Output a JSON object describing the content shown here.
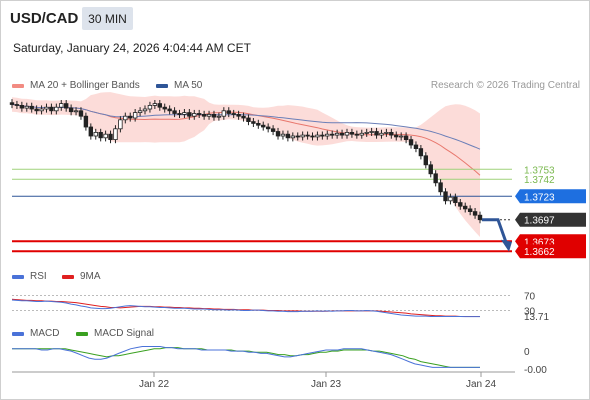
{
  "header": {
    "symbol": "USD/CAD",
    "timeframe": "30 MIN",
    "datetime": "Saturday, January 24, 2026 4:04:44 AM CET",
    "credit": "Research © 2026 Trading Central"
  },
  "legends": {
    "main": [
      {
        "label": "MA 20 + Bollinger Bands",
        "color": "#f28b82"
      },
      {
        "label": "MA 50",
        "color": "#2f5597"
      }
    ],
    "rsi": [
      {
        "label": "RSI",
        "color": "#4a72d8"
      },
      {
        "label": "9MA",
        "color": "#e02020"
      }
    ],
    "macd": [
      {
        "label": "MACD",
        "color": "#4a72d8"
      },
      {
        "label": "MACD Signal",
        "color": "#3aa020"
      }
    ]
  },
  "colors": {
    "resistance": "#9fd27a",
    "pivot": "#2f5597",
    "support": "#e00000",
    "last_price_bg": "#333333",
    "pivot_tag_bg": "#1e6fe0",
    "support_tag_bg": "#e00000",
    "bollinger_fill": "#fbd3d0",
    "arrow": "#2f5597"
  },
  "chart_data": [
    {
      "type": "candlestick",
      "title": "USD/CAD 30 MIN",
      "ylim": [
        1.365,
        1.383
      ],
      "x_ticks": [
        "Jan 22",
        "Jan 23",
        "Jan 24"
      ],
      "closes": [
        1.3825,
        1.3824,
        1.3821,
        1.3823,
        1.382,
        1.3818,
        1.382,
        1.3822,
        1.3818,
        1.3822,
        1.3826,
        1.3821,
        1.3817,
        1.3818,
        1.3812,
        1.38,
        1.379,
        1.3794,
        1.3788,
        1.3792,
        1.3786,
        1.3798,
        1.3808,
        1.3812,
        1.381,
        1.3816,
        1.3818,
        1.382,
        1.3824,
        1.3826,
        1.3822,
        1.382,
        1.3818,
        1.3815,
        1.3814,
        1.3816,
        1.3812,
        1.3815,
        1.3814,
        1.3812,
        1.3814,
        1.3811,
        1.3812,
        1.3818,
        1.3815,
        1.3814,
        1.3812,
        1.381,
        1.3806,
        1.3804,
        1.3802,
        1.38,
        1.3798,
        1.3795,
        1.379,
        1.3792,
        1.3788,
        1.379,
        1.3789,
        1.3791,
        1.379,
        1.3789,
        1.3791,
        1.379,
        1.3792,
        1.3791,
        1.3793,
        1.3791,
        1.3794,
        1.3792,
        1.3791,
        1.3793,
        1.3794,
        1.3795,
        1.3791,
        1.3793,
        1.3794,
        1.3791,
        1.3789,
        1.379,
        1.3786,
        1.378,
        1.3776,
        1.3768,
        1.3758,
        1.3748,
        1.3738,
        1.3728,
        1.3718,
        1.3722,
        1.3716,
        1.3712,
        1.3709,
        1.3706,
        1.3702,
        1.3697
      ],
      "last_price": 1.3697
    },
    {
      "type": "lines",
      "name": "levels",
      "levels": [
        {
          "label": "1.3753",
          "value": 1.3753,
          "kind": "resistance"
        },
        {
          "label": "1.3742",
          "value": 1.3742,
          "kind": "resistance"
        },
        {
          "label": "1.3723",
          "value": 1.3723,
          "kind": "pivot"
        },
        {
          "label": "1.3697",
          "value": 1.3697,
          "kind": "last"
        },
        {
          "label": "1.3673",
          "value": 1.3673,
          "kind": "support"
        },
        {
          "label": "1.3662",
          "value": 1.3662,
          "kind": "support"
        }
      ]
    },
    {
      "type": "line",
      "name": "RSI panel",
      "ylim": [
        10,
        90
      ],
      "y_ticks": [
        "70",
        "30"
      ],
      "last_label": "13.71",
      "rsi": [
        58,
        57,
        56,
        56,
        55,
        54,
        54,
        55,
        54,
        53,
        52,
        50,
        47,
        45,
        42,
        40,
        37,
        36,
        35,
        35,
        36,
        38,
        40,
        42,
        43,
        42,
        41,
        40,
        40,
        39,
        38,
        38,
        37,
        36,
        36,
        36,
        35,
        34,
        34,
        34,
        33,
        32,
        32,
        32,
        31,
        32,
        31,
        30,
        30,
        31,
        31,
        30,
        29,
        29,
        28,
        28,
        27,
        27,
        27,
        28,
        28,
        28,
        29,
        28,
        29,
        28,
        29,
        29,
        30,
        30,
        29,
        29,
        30,
        29,
        28,
        26,
        24,
        22,
        20,
        18,
        17,
        16,
        15,
        15,
        15,
        14,
        14,
        14,
        14,
        14,
        14,
        14,
        13.7,
        13.7,
        13.7,
        13.71
      ],
      "ma9": [
        60,
        59,
        58,
        57,
        57,
        56,
        56,
        55,
        55,
        54,
        54,
        53,
        52,
        51,
        49,
        47,
        45,
        43,
        41,
        40,
        38,
        38,
        37,
        38,
        39,
        40,
        41,
        41,
        41,
        40,
        40,
        39,
        39,
        38,
        38,
        37,
        37,
        36,
        36,
        35,
        35,
        34,
        34,
        33,
        33,
        33,
        32,
        32,
        32,
        31,
        31,
        31,
        30,
        30,
        30,
        29,
        29,
        29,
        29,
        28,
        28,
        28,
        28,
        28,
        28,
        29,
        29,
        29,
        29,
        29,
        29,
        29,
        29,
        29,
        29,
        28,
        27,
        26,
        25,
        24,
        23,
        21,
        20,
        19,
        18,
        17,
        16,
        16,
        15,
        15,
        15,
        14,
        14,
        14,
        14,
        14
      ]
    },
    {
      "type": "line",
      "name": "MACD panel",
      "ylim": [
        -0.002,
        0.0005
      ],
      "y_ticks": [
        "0",
        "-0.00"
      ],
      "macd": [
        0.0,
        0.0,
        0.0,
        0.0,
        0.0,
        -0.0001,
        -0.0001,
        0.0,
        0.0,
        -0.0001,
        -0.0002,
        -0.0004,
        -0.0006,
        -0.0008,
        -0.0009,
        -0.0009,
        -0.0008,
        -0.0006,
        -0.0004,
        -0.0002,
        0.0,
        0.0001,
        0.0002,
        0.0002,
        0.0002,
        0.0002,
        0.0001,
        0.0001,
        0.0,
        0.0,
        0.0,
        0.0,
        -0.0001,
        -0.0001,
        -0.0001,
        -0.0001,
        -0.0001,
        -0.0002,
        -0.0002,
        -0.0002,
        -0.0003,
        -0.0003,
        -0.0004,
        -0.0004,
        -0.0005,
        -0.0006,
        -0.0007,
        -0.0007,
        -0.0006,
        -0.0005,
        -0.0004,
        -0.0003,
        -0.0002,
        -0.0001,
        -0.0001,
        -0.0001,
        0.0,
        0.0,
        0.0,
        0.0,
        -0.0001,
        -0.0002,
        -0.0003,
        -0.0004,
        -0.0005,
        -0.0007,
        -0.0009,
        -0.0011,
        -0.0013,
        -0.0014,
        -0.0015,
        -0.0016,
        -0.0016,
        -0.0016,
        -0.0016,
        -0.0016,
        -0.0016,
        -0.0016,
        -0.0016,
        -0.0016
      ],
      "signal": [
        0.0,
        0.0,
        0.0,
        0.0,
        0.0,
        0.0,
        0.0,
        0.0,
        0.0,
        0.0,
        -0.0001,
        -0.0002,
        -0.0003,
        -0.0004,
        -0.0005,
        -0.0006,
        -0.0007,
        -0.0006,
        -0.0006,
        -0.0005,
        -0.0004,
        -0.0003,
        -0.0002,
        -0.0001,
        0.0,
        0.0,
        0.0001,
        0.0001,
        0.0001,
        0.0,
        0.0,
        0.0,
        0.0,
        -0.0001,
        -0.0001,
        -0.0001,
        -0.0001,
        -0.0001,
        -0.0002,
        -0.0002,
        -0.0002,
        -0.0003,
        -0.0003,
        -0.0003,
        -0.0004,
        -0.0005,
        -0.0005,
        -0.0006,
        -0.0006,
        -0.0005,
        -0.0005,
        -0.0004,
        -0.0003,
        -0.0003,
        -0.0002,
        -0.0002,
        -0.0001,
        -0.0001,
        -0.0001,
        -0.0001,
        -0.0001,
        -0.0002,
        -0.0002,
        -0.0003,
        -0.0004,
        -0.0005,
        -0.0006,
        -0.0008,
        -0.0009,
        -0.0011,
        -0.0012,
        -0.0013,
        -0.0014,
        -0.0015,
        -0.0016,
        -0.0016,
        -0.0016,
        -0.0016,
        -0.0016,
        -0.0016
      ]
    }
  ]
}
